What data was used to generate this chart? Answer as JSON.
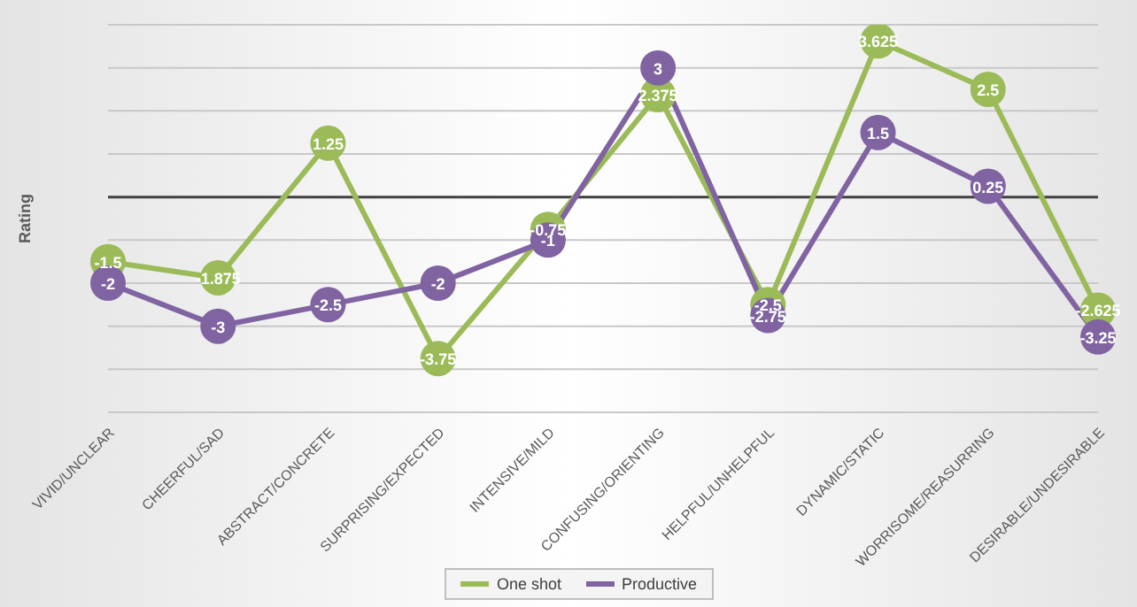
{
  "chart_data": {
    "type": "line",
    "ylabel": "Rating",
    "categories": [
      "VIVID/UNCLEAR",
      "CHEERFUL/SAD",
      "ABSTRACT/CONCRETE",
      "SURPRISING/EXPECTED",
      "INTENSIVE/MILD",
      "CONFUSING/ORIENTING",
      "HELPFUL/UNHELPFUL",
      "DYNAMIC/STATIC",
      "WORRISOME/REASURRING",
      "DESIRABLE/UNDESIRABLE"
    ],
    "series": [
      {
        "name": "One shot",
        "color": "#9bbb59",
        "values": [
          -1.5,
          -1.875,
          1.25,
          -3.75,
          -0.75,
          2.375,
          -2.5,
          3.625,
          2.5,
          -2.625
        ]
      },
      {
        "name": "Productive",
        "color": "#8064a2",
        "values": [
          -2,
          -3,
          -2.5,
          -2,
          -1,
          3,
          -2.75,
          1.5,
          0.25,
          -3.25
        ]
      }
    ],
    "ylim": [
      -5,
      4
    ],
    "yticks": [
      -5,
      -4,
      -3,
      -2,
      -1,
      0,
      1,
      2,
      3,
      4
    ],
    "grid": "y",
    "tick_labels": "x",
    "marker": "circle",
    "data_labels": true,
    "legend": "bottom"
  }
}
